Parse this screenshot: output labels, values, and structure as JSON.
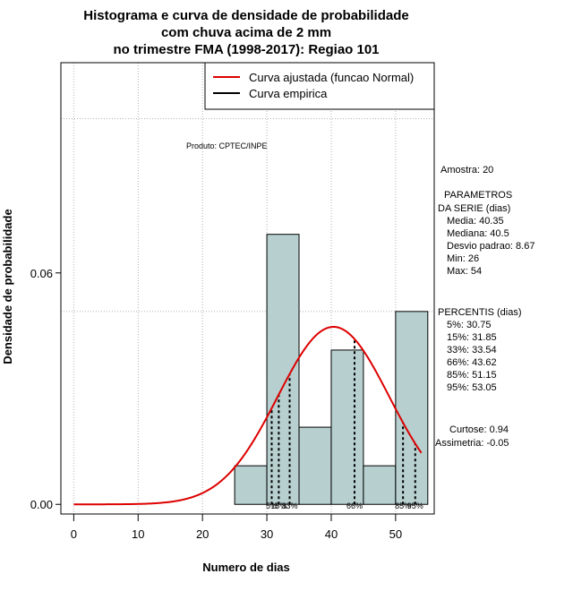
{
  "chart_data": {
    "type": "histogram",
    "title": [
      "Histograma e curva de densidade de probabilidade",
      "com chuva acima de 2 mm",
      "no trimestre FMA (1998-2017): Regiao 101"
    ],
    "xlabel": "Numero de dias",
    "ylabel": "Densidade de probabilidade",
    "xlim": [
      -2,
      56
    ],
    "ylim": [
      -0.0025,
      0.1145
    ],
    "xticks": [
      0,
      10,
      20,
      30,
      40,
      50
    ],
    "yticks": [
      0.0,
      0.06
    ],
    "ytick_labels": [
      "0.00",
      "0.06"
    ],
    "gridlines_y": [
      0.05,
      0.1
    ],
    "bins": [
      {
        "x0": 25,
        "x1": 30,
        "density": 0.01
      },
      {
        "x0": 30,
        "x1": 35,
        "density": 0.07
      },
      {
        "x0": 35,
        "x1": 40,
        "density": 0.02
      },
      {
        "x0": 40,
        "x1": 45,
        "density": 0.04
      },
      {
        "x0": 45,
        "x1": 50,
        "density": 0.01
      },
      {
        "x0": 50,
        "x1": 55,
        "density": 0.05
      }
    ],
    "normal_curve": {
      "mean": 40.35,
      "sd": 8.67,
      "x_from": 0,
      "x_to": 54
    },
    "percentile_lines": [
      {
        "label": "5%",
        "x": 30.75
      },
      {
        "label": "15%",
        "x": 31.85
      },
      {
        "label": "33%",
        "x": 33.54
      },
      {
        "label": "66%",
        "x": 43.62
      },
      {
        "label": "85%",
        "x": 51.15
      },
      {
        "label": "95%",
        "x": 53.05
      }
    ],
    "legend": [
      {
        "label": "Curva ajustada (funcao Normal)",
        "color": "#dd0000"
      },
      {
        "label": "Curva empirica",
        "color": "#000000"
      }
    ],
    "bar_color": "#b7cfcf",
    "curve_color": "#dd0000"
  },
  "annotations": {
    "produto": "Produto: CPTEC/INPE",
    "amostra": "Amostra: 20",
    "param_title1": "PARAMETROS",
    "param_title2": "DA SERIE (dias)",
    "media": "Media: 40.35",
    "mediana": "Mediana: 40.5",
    "desvio": "Desvio padrao: 8.67",
    "min": "Min: 26",
    "max": "Max: 54",
    "percentis_title": "PERCENTIS (dias)",
    "p5": "5%: 30.75",
    "p15": "15%: 31.85",
    "p33": "33%: 33.54",
    "p66": "66%: 43.62",
    "p85": "85%: 51.15",
    "p95": "95%: 53.05",
    "curtose": "Curtose: 0.94",
    "assimetria": "Assimetria: -0.05"
  }
}
